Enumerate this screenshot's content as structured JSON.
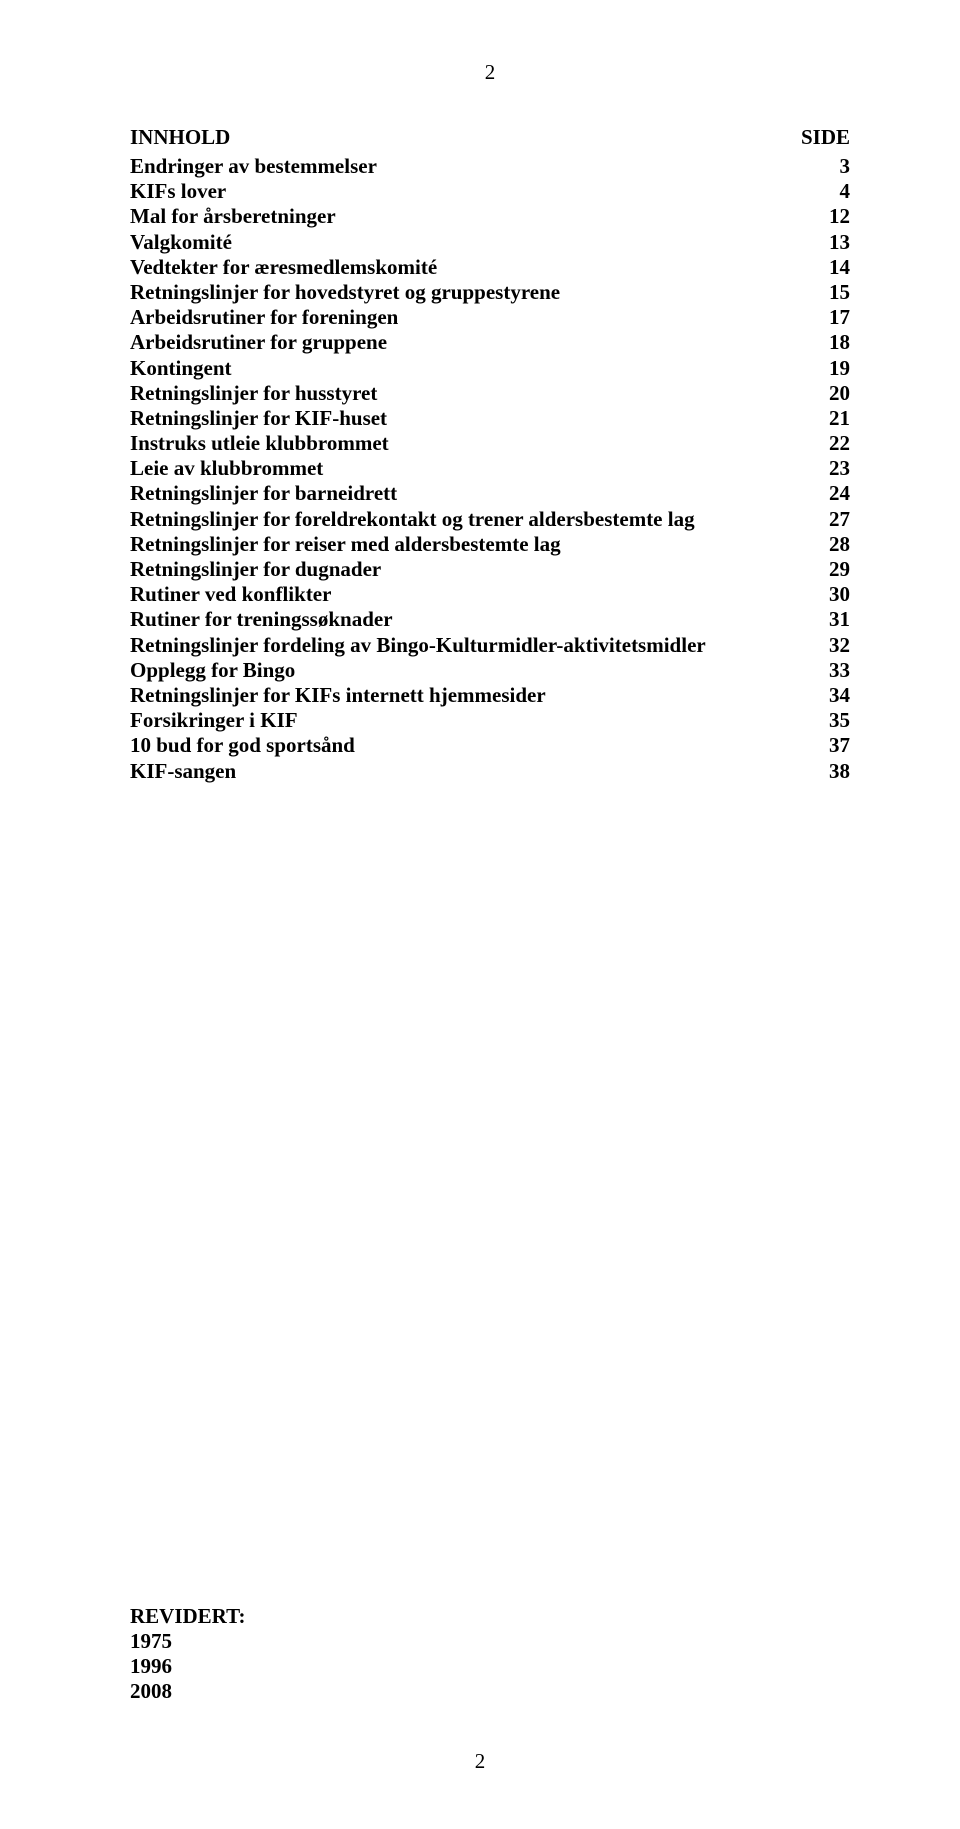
{
  "page_number_top": "2",
  "page_number_bottom": "2",
  "heading": {
    "left": "INNHOLD",
    "right": "SIDE"
  },
  "toc": [
    {
      "label": "Endringer av bestemmelser",
      "page": "3"
    },
    {
      "label": "KIFs lover",
      "page": "4"
    },
    {
      "label": "Mal for årsberetninger",
      "page": "12"
    },
    {
      "label": "Valgkomité",
      "page": "13"
    },
    {
      "label": "Vedtekter for æresmedlemskomité",
      "page": "14"
    },
    {
      "label": "Retningslinjer for hovedstyret og gruppestyrene",
      "page": "15"
    },
    {
      "label": "Arbeidsrutiner for foreningen",
      "page": "17"
    },
    {
      "label": "Arbeidsrutiner for gruppene",
      "page": "18"
    },
    {
      "label": "Kontingent",
      "page": "19"
    },
    {
      "label": "Retningslinjer for husstyret",
      "page": "20"
    },
    {
      "label": "Retningslinjer for KIF-huset",
      "page": "21"
    },
    {
      "label": "Instruks utleie klubbrommet",
      "page": "22"
    },
    {
      "label": "Leie av klubbrommet",
      "page": "23"
    },
    {
      "label": "Retningslinjer for barneidrett",
      "page": "24"
    },
    {
      "label": "Retningslinjer for foreldrekontakt og trener aldersbestemte lag",
      "page": "27"
    },
    {
      "label": "Retningslinjer for reiser med aldersbestemte lag",
      "page": "28"
    },
    {
      "label": "Retningslinjer for dugnader",
      "page": "29"
    },
    {
      "label": "Rutiner ved konflikter",
      "page": "30"
    },
    {
      "label": "Rutiner for treningssøknader",
      "page": "31"
    },
    {
      "label": "Retningslinjer fordeling av Bingo-Kulturmidler-aktivitetsmidler",
      "page": "32"
    },
    {
      "label": "Opplegg for Bingo",
      "page": "33"
    },
    {
      "label": "Retningslinjer for KIFs internett hjemmesider",
      "page": "34"
    },
    {
      "label": "Forsikringer i KIF",
      "page": "35"
    },
    {
      "label": "10 bud for god sportsånd",
      "page": "37"
    },
    {
      "label": "KIF-sangen",
      "page": "38"
    }
  ],
  "revised": {
    "title": "REVIDERT:",
    "years": [
      "1975",
      "1996",
      "2008"
    ]
  },
  "colors": {
    "background": "#ffffff",
    "text": "#000000"
  },
  "typography": {
    "font_family": "Times New Roman",
    "body_fontsize_pt": 16,
    "weight": "bold"
  }
}
